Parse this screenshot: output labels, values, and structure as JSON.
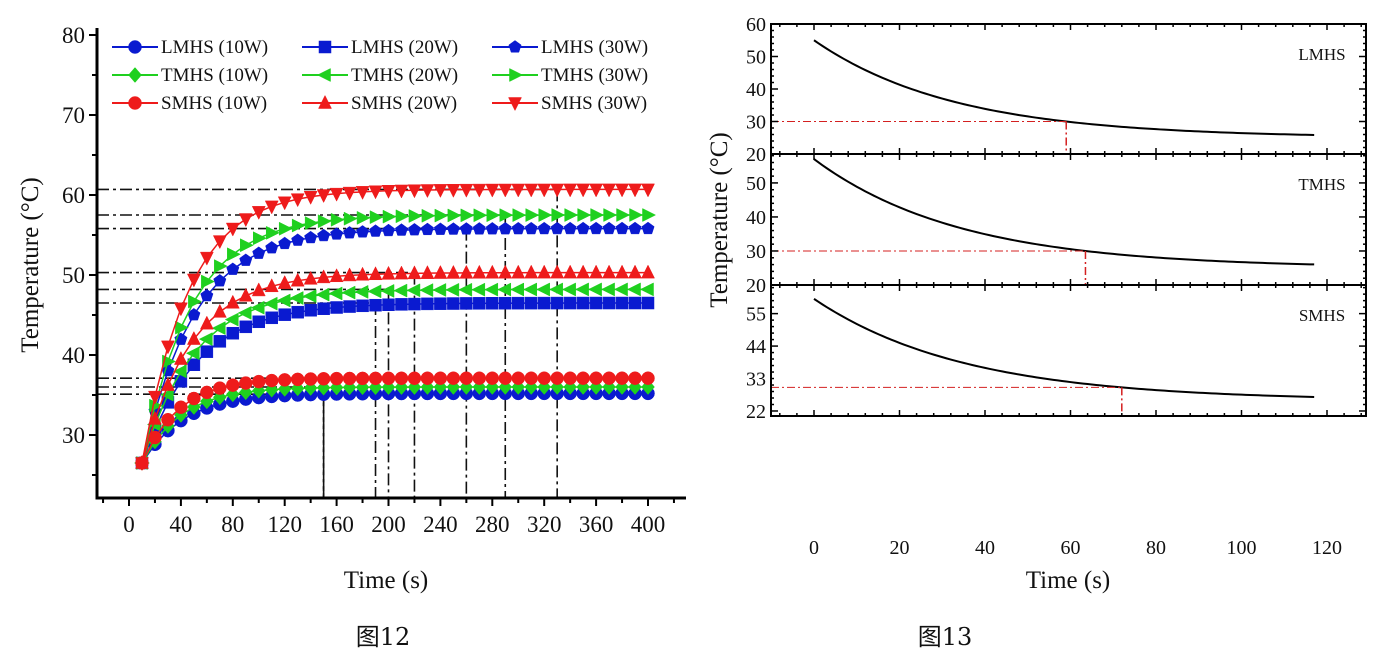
{
  "captions": {
    "left": "图12",
    "right": "图13"
  },
  "colors": {
    "LMHS": "#0a1ad0",
    "TMHS": "#1fd01f",
    "SMHS": "#ee1b1b",
    "ref_left": "#111111",
    "ref_right": "#d42020"
  },
  "chart_data": [
    {
      "type": "line",
      "title": "",
      "xlabel": "Time (s)",
      "ylabel": "Temperature (°C)",
      "xlim": [
        -25,
        428
      ],
      "ylim": [
        22,
        80
      ],
      "xticks": [
        0,
        40,
        80,
        120,
        160,
        200,
        240,
        280,
        320,
        360,
        400
      ],
      "yticks": [
        30,
        40,
        50,
        60,
        70,
        80
      ],
      "grid": false,
      "legend_placement": "top",
      "x": {
        "start": 10,
        "end": 400,
        "step": 10
      },
      "initial_temperature": 26.5,
      "series": [
        {
          "name": "LMHS (10W)",
          "group": "LMHS",
          "marker": "circle",
          "steady": 35.2,
          "tau": 32
        },
        {
          "name": "LMHS (20W)",
          "group": "LMHS",
          "marker": "square",
          "steady": 46.5,
          "tau": 42
        },
        {
          "name": "LMHS (30W)",
          "group": "LMHS",
          "marker": "pentagon",
          "steady": 55.8,
          "tau": 40
        },
        {
          "name": "TMHS (10W)",
          "group": "TMHS",
          "marker": "diamond",
          "steady": 36.0,
          "tau": 30
        },
        {
          "name": "TMHS (20W)",
          "group": "TMHS",
          "marker": "triangle-left",
          "steady": 48.2,
          "tau": 40
        },
        {
          "name": "TMHS (30W)",
          "group": "TMHS",
          "marker": "triangle-right",
          "steady": 57.5,
          "tau": 38
        },
        {
          "name": "SMHS (10W)",
          "group": "SMHS",
          "marker": "circle",
          "steady": 37.1,
          "tau": 28
        },
        {
          "name": "SMHS (20W)",
          "group": "SMHS",
          "marker": "triangle-up",
          "steady": 50.3,
          "tau": 38
        },
        {
          "name": "SMHS (30W)",
          "group": "SMHS",
          "marker": "triangle-down",
          "steady": 60.7,
          "tau": 36
        }
      ],
      "reference_lines": [
        {
          "temperature": 37.1,
          "time": 150
        },
        {
          "temperature": 36.0,
          "time": 150
        },
        {
          "temperature": 35.1,
          "time": 150
        },
        {
          "temperature": 46.5,
          "time": 190
        },
        {
          "temperature": 48.2,
          "time": 200
        },
        {
          "temperature": 50.3,
          "time": 220
        },
        {
          "temperature": 55.8,
          "time": 260
        },
        {
          "temperature": 57.5,
          "time": 290
        },
        {
          "temperature": 60.7,
          "time": 330
        }
      ]
    },
    {
      "type": "line",
      "xlabel": "Time (s)",
      "ylabel": "Temperature (°C)",
      "xlim": [
        -10,
        130
      ],
      "xticks": [
        0,
        20,
        40,
        60,
        80,
        100,
        120
      ],
      "grid": false,
      "panels": [
        {
          "label": "LMHS",
          "ylim": [
            20,
            60
          ],
          "yticks": [
            20,
            30,
            40,
            50,
            60
          ],
          "initial": 55,
          "ambient": 25,
          "tau": 32.9,
          "t_end": 117,
          "threshold": 30,
          "threshold_time": 59
        },
        {
          "label": "TMHS",
          "ylim": [
            20,
            58.5
          ],
          "yticks": [
            20,
            30,
            40,
            50
          ],
          "initial": 57,
          "ambient": 25,
          "tau": 34.2,
          "t_end": 117,
          "threshold": 30,
          "threshold_time": 63.5
        },
        {
          "label": "SMHS",
          "ylim": [
            20.3,
            64.7
          ],
          "yticks": [
            22,
            33,
            44,
            55
          ],
          "initial": 60,
          "ambient": 25.5,
          "tau": 35.3,
          "t_end": 117,
          "threshold": 30,
          "threshold_time": 72
        }
      ]
    }
  ]
}
